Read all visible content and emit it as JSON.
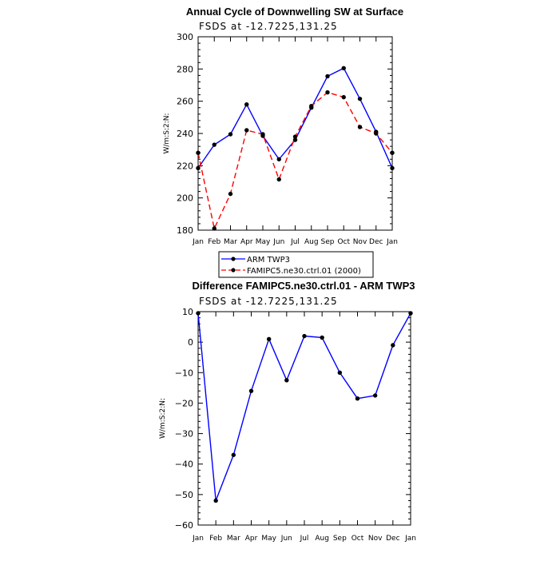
{
  "chart_data": [
    {
      "type": "line",
      "title": "Annual Cycle of Downwelling SW at Surface",
      "subtitle": "FSDS at -12.7225,131.25",
      "ylabel": "W/m:S:2:N:",
      "xlabel": "",
      "categories": [
        "Jan",
        "Feb",
        "Mar",
        "Apr",
        "May",
        "Jun",
        "Jul",
        "Aug",
        "Sep",
        "Oct",
        "Nov",
        "Dec",
        "Jan"
      ],
      "ylim": [
        180,
        300
      ],
      "yticks": [
        180,
        200,
        220,
        240,
        260,
        280,
        300
      ],
      "legend_position": "bottom",
      "series": [
        {
          "name": "ARM TWP3",
          "color": "#0000ff",
          "dash": "solid",
          "values": [
            218.5,
            233.0,
            239.5,
            258.0,
            238.5,
            224.0,
            236.0,
            256.0,
            275.5,
            280.5,
            261.5,
            241.0,
            218.5
          ]
        },
        {
          "name": "FAMIPC5.ne30.ctrl.01 (2000)",
          "color": "#ff0000",
          "dash": "dashed",
          "values": [
            228.0,
            181.0,
            202.5,
            242.0,
            239.5,
            211.5,
            238.0,
            257.0,
            265.5,
            262.5,
            244.0,
            240.0,
            228.0
          ]
        }
      ]
    },
    {
      "type": "line",
      "title": "Difference FAMIPC5.ne30.ctrl.01 - ARM TWP3",
      "subtitle": "FSDS at -12.7225,131.25",
      "ylabel": "W/m:S:2:N:",
      "xlabel": "",
      "categories": [
        "Jan",
        "Feb",
        "Mar",
        "Apr",
        "May",
        "Jun",
        "Jul",
        "Aug",
        "Sep",
        "Oct",
        "Nov",
        "Dec",
        "Jan"
      ],
      "ylim": [
        -60,
        10
      ],
      "yticks": [
        -60,
        -50,
        -40,
        -30,
        -20,
        -10,
        0,
        10
      ],
      "series": [
        {
          "name": "",
          "color": "#0000ff",
          "dash": "solid",
          "values": [
            9.5,
            -52.0,
            -37.0,
            -16.0,
            1.0,
            -12.5,
            2.0,
            1.5,
            -10.0,
            -18.5,
            -17.5,
            -1.0,
            9.5
          ]
        }
      ]
    }
  ]
}
